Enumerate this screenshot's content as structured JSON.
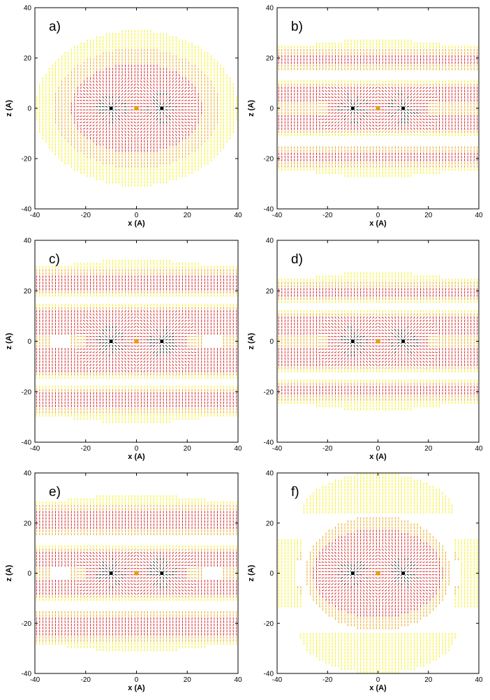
{
  "chart_data": [
    {
      "type": "scatter",
      "panel_label": "a)",
      "xlabel": "x (A)",
      "ylabel": "z (A)",
      "xlim": [
        -40,
        40
      ],
      "ylim": [
        -40,
        40
      ],
      "xticks": [
        "-40",
        "-20",
        "0",
        "20",
        "40"
      ],
      "yticks": [
        "40",
        "20",
        "0",
        "-20",
        "-40"
      ],
      "field_shape": "ellipse",
      "sources_x": [
        -10,
        0,
        10
      ],
      "colors": {
        "far": "#f2f000",
        "mid": "#e8a000",
        "near": "#cc1010",
        "core": "#000000"
      }
    },
    {
      "type": "scatter",
      "panel_label": "b)",
      "xlabel": "x (A)",
      "ylabel": "z (A)",
      "xlim": [
        -40,
        40
      ],
      "ylim": [
        -40,
        40
      ],
      "xticks": [
        "-40",
        "-20",
        "0",
        "20",
        "40"
      ],
      "yticks": [
        "40",
        "20",
        "0",
        "-20",
        "-40"
      ],
      "field_shape": "slab",
      "slab_half_height": 26,
      "gap_bands": [
        13,
        -13
      ],
      "sources_x": [
        -10,
        0,
        10
      ],
      "colors": {
        "far": "#f2f000",
        "mid": "#e8a000",
        "near": "#cc1010",
        "core": "#000000"
      }
    },
    {
      "type": "scatter",
      "panel_label": "c)",
      "xlabel": "x (A)",
      "ylabel": "z (A)",
      "xlim": [
        -40,
        40
      ],
      "ylim": [
        -40,
        40
      ],
      "xticks": [
        "-40",
        "-20",
        "0",
        "20",
        "40"
      ],
      "yticks": [
        "40",
        "20",
        "0",
        "-20",
        "-40"
      ],
      "field_shape": "slab",
      "slab_half_height": 31,
      "gap_bands": [
        16,
        -16
      ],
      "sources_x": [
        -10,
        0,
        10
      ],
      "colors": {
        "far": "#f2f000",
        "mid": "#e8a000",
        "near": "#cc1010",
        "core": "#000000"
      }
    },
    {
      "type": "scatter",
      "panel_label": "d)",
      "xlabel": "x (A)",
      "ylabel": "z (A)",
      "xlim": [
        -40,
        40
      ],
      "ylim": [
        -40,
        40
      ],
      "xticks": [
        "-40",
        "-20",
        "0",
        "20",
        "40"
      ],
      "yticks": [
        "40",
        "20",
        "0",
        "-20",
        "-40"
      ],
      "field_shape": "slab",
      "slab_half_height": 26,
      "gap_bands": [
        14,
        -14
      ],
      "sources_x": [
        -10,
        0,
        10
      ],
      "colors": {
        "far": "#f2f000",
        "mid": "#e8a000",
        "near": "#cc1010",
        "core": "#000000"
      }
    },
    {
      "type": "scatter",
      "panel_label": "e)",
      "xlabel": "x (A)",
      "ylabel": "z (A)",
      "xlim": [
        -40,
        40
      ],
      "ylim": [
        -40,
        40
      ],
      "xticks": [
        "-40",
        "-20",
        "0",
        "20",
        "40"
      ],
      "yticks": [
        "40",
        "20",
        "0",
        "-20",
        "-40"
      ],
      "field_shape": "slab",
      "slab_half_height": 30,
      "gap_bands": [
        13,
        -13
      ],
      "sources_x": [
        -10,
        0,
        10
      ],
      "colors": {
        "far": "#f2f000",
        "mid": "#e8a000",
        "near": "#cc1010",
        "core": "#000000"
      }
    },
    {
      "type": "scatter",
      "panel_label": "f)",
      "xlabel": "x (A)",
      "ylabel": "z (A)",
      "xlim": [
        -40,
        40
      ],
      "ylim": [
        -40,
        40
      ],
      "xticks": [
        "-40",
        "-20",
        "0",
        "20",
        "40"
      ],
      "yticks": [
        "40",
        "20",
        "0",
        "-20",
        "-40"
      ],
      "field_shape": "islands",
      "sources_x": [
        -10,
        0,
        10
      ],
      "colors": {
        "far": "#f2f000",
        "mid": "#e8a000",
        "near": "#cc1010",
        "core": "#000000"
      }
    }
  ]
}
